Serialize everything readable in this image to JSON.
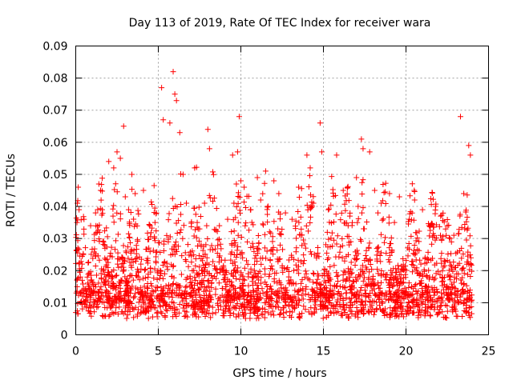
{
  "chart_data": {
    "type": "scatter",
    "title": "Day 113 of 2019, Rate Of TEC Index for receiver wara",
    "xlabel": "GPS time / hours",
    "ylabel": "ROTI / TECUs",
    "xlim": [
      0,
      25
    ],
    "ylim": [
      0,
      0.09
    ],
    "xticks": [
      0,
      5,
      10,
      15,
      20,
      25
    ],
    "xtick_labels": [
      "0",
      "5",
      "10",
      "15",
      "20",
      "25"
    ],
    "yticks": [
      0,
      0.01,
      0.02,
      0.03,
      0.04,
      0.05,
      0.06,
      0.07,
      0.08,
      0.09
    ],
    "ytick_labels": [
      "0",
      "0.01",
      "0.02",
      "0.03",
      "0.04",
      "0.05",
      "0.06",
      "0.07",
      "0.08",
      "0.09"
    ],
    "grid": true,
    "marker": "+",
    "color": "#ff0000",
    "series": [
      {
        "name": "ROTI",
        "x": [
          0.1,
          0.15,
          0.2,
          0.9,
          1.4,
          1.6,
          2.0,
          2.3,
          2.5,
          2.7,
          2.9,
          3.0,
          3.4,
          3.6,
          4.1,
          4.8,
          5.2,
          5.3,
          5.7,
          5.9,
          6.0,
          6.1,
          6.3,
          6.5,
          7.2,
          7.8,
          8.0,
          8.1,
          9.5,
          9.8,
          9.9,
          10.0,
          10.2,
          11.0,
          11.5,
          12.0,
          12.3,
          13.5,
          14.0,
          14.2,
          14.8,
          14.9,
          15.8,
          16.2,
          17.0,
          17.3,
          17.4,
          17.8,
          18.1,
          18.5,
          19.0,
          19.6,
          20.5,
          21.0,
          21.8,
          22.5,
          23.3,
          23.5,
          23.8,
          23.9,
          0.5,
          1.2,
          3.2,
          4.5,
          6.7,
          7.5,
          8.7,
          9.2,
          10.6,
          11.2,
          12.7,
          13.1,
          14.4,
          15.3,
          16.6,
          17.1,
          18.3,
          19.3,
          20.2,
          21.4,
          22.1,
          22.9
        ],
        "y": [
          0.041,
          0.046,
          0.039,
          0.034,
          0.047,
          0.039,
          0.054,
          0.052,
          0.057,
          0.055,
          0.065,
          0.043,
          0.05,
          0.044,
          0.045,
          0.035,
          0.077,
          0.067,
          0.066,
          0.082,
          0.075,
          0.073,
          0.063,
          0.05,
          0.052,
          0.041,
          0.064,
          0.058,
          0.056,
          0.057,
          0.068,
          0.048,
          0.046,
          0.049,
          0.051,
          0.048,
          0.044,
          0.046,
          0.056,
          0.052,
          0.066,
          0.057,
          0.056,
          0.045,
          0.049,
          0.061,
          0.058,
          0.057,
          0.045,
          0.041,
          0.044,
          0.043,
          0.045,
          0.039,
          0.04,
          0.034,
          0.068,
          0.044,
          0.059,
          0.056,
          0.036,
          0.038,
          0.039,
          0.034,
          0.041,
          0.033,
          0.034,
          0.036,
          0.039,
          0.042,
          0.038,
          0.036,
          0.041,
          0.039,
          0.037,
          0.04,
          0.038,
          0.035,
          0.036,
          0.034,
          0.037,
          0.031
        ]
      }
    ]
  }
}
